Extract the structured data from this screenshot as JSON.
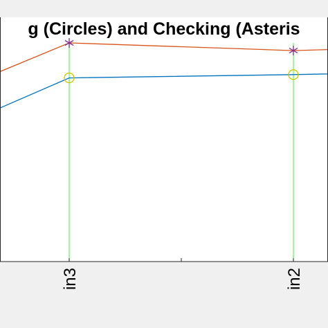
{
  "chart_data": {
    "type": "line",
    "title": "g (Circles) and Checking (Asteris",
    "categories": [
      "",
      "in3",
      "",
      "in2",
      ""
    ],
    "series": [
      {
        "color": "#d95319",
        "marker": "asterisk",
        "marker_color": "#7e2f8e",
        "values": [
          0.79,
          1.0,
          null,
          0.965,
          0.98
        ],
        "markers_at": [
          1,
          3
        ]
      },
      {
        "color": "#0072bd",
        "marker": "circle",
        "marker_color": "#c9c900",
        "values": [
          0.62,
          0.84,
          null,
          0.855,
          0.865
        ],
        "markers_at": [
          1,
          3
        ]
      }
    ],
    "drop_lines": {
      "color": "#5ff55f",
      "at_categories": [
        "in3",
        "in2"
      ]
    },
    "grid": false,
    "background": "#ffffff"
  }
}
